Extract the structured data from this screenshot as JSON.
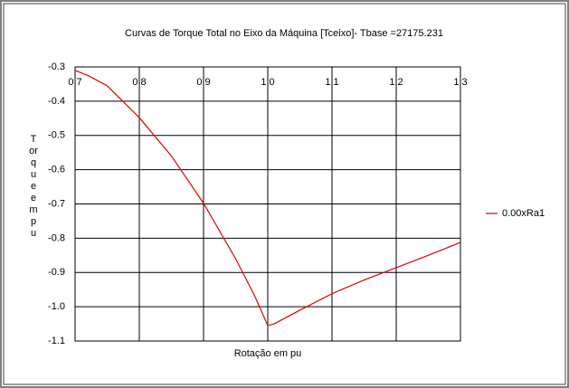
{
  "chart_data": {
    "type": "line",
    "title": "Curvas de Torque Total no Eixo da Máquina [Tceixo]- Tbase =27175.231",
    "x_label": "Rotação  em  pu",
    "y_label": "Torque em pu",
    "x": [
      0.7,
      0.72,
      0.75,
      0.8,
      0.85,
      0.9,
      0.95,
      0.98,
      1.0,
      1.01,
      1.05,
      1.1,
      1.15,
      1.2,
      1.25,
      1.3
    ],
    "series": [
      {
        "name": "0.00xRa1",
        "color": "#e00000",
        "values": [
          -0.31,
          -0.325,
          -0.355,
          -0.448,
          -0.56,
          -0.698,
          -0.86,
          -0.97,
          -1.055,
          -1.05,
          -1.01,
          -0.962,
          -0.922,
          -0.886,
          -0.85,
          -0.812
        ]
      }
    ],
    "xlim": [
      0.7,
      1.3
    ],
    "xticks": [
      0.7,
      0.8,
      0.9,
      {
        "value": 1,
        "label": "1.0"
      },
      1.1,
      1.2,
      1.3
    ],
    "ylim": [
      -1.1,
      -0.3
    ],
    "yticks": [
      -0.3,
      -0.4,
      -0.5,
      -0.6,
      -0.7,
      -0.8,
      -0.9,
      {
        "value": -1,
        "label": "-1.0"
      },
      -1.1
    ],
    "grid": true,
    "legend": "right"
  }
}
